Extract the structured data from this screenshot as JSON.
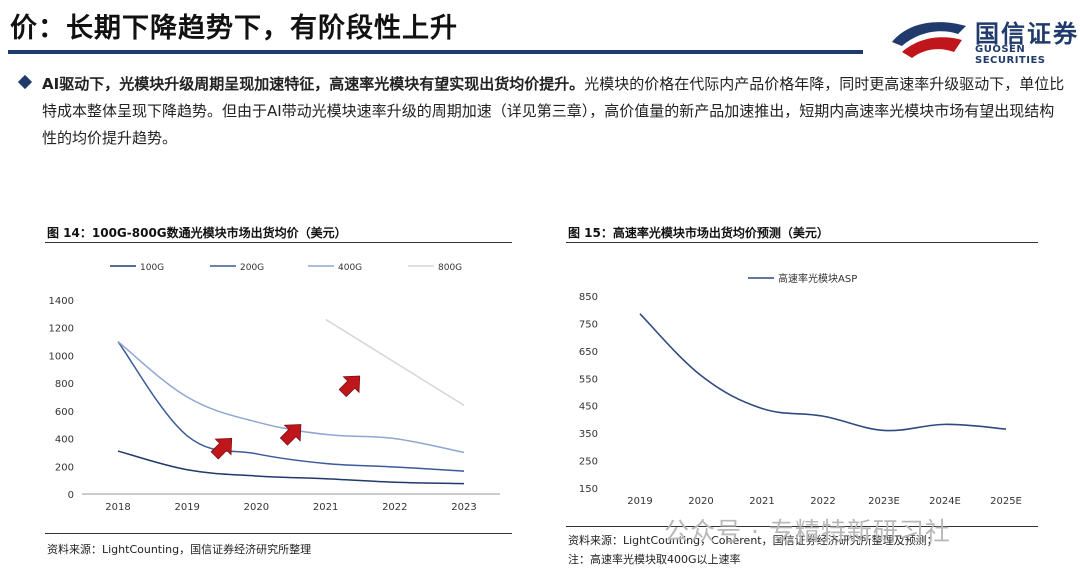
{
  "header": {
    "title": "价：长期下降趋势下，有阶段性上升",
    "logo_cn": "国信证券",
    "logo_en": "GUOSEN SECURITIES"
  },
  "bullet": {
    "bold": "AI驱动下，光模块升级周期呈现加速特征，高速率光模块有望实现出货均价提升。",
    "text": "光模块的价格在代际内产品价格年降，同时更高速率升级驱动下，单位比特成本整体呈现下降趋势。但由于AI带动光模块速率升级的周期加速（详见第三章），高价值量的新产品加速推出，短期内高速率光模块市场有望出现结构性的均价提升趋势。"
  },
  "figure14": {
    "title": "图 14：100G-800G数通光模块市场出货均价（美元）",
    "source": "资料来源：LightCounting，国信证券经济研究所整理"
  },
  "figure15": {
    "title": "图 15：高速率光模块市场出货均价预测（美元）",
    "source": "资料来源：LightCounting，Coherent，国信证券经济研究所整理及预测；",
    "note": "注：高速率光模块取400G以上速率"
  },
  "watermark": "公众号 · 专精特新研习社",
  "colors": {
    "brand": "#1f3a6b",
    "s100G": "#1f3a6b",
    "s200G": "#3a5a9a",
    "s400G": "#8fa6d3",
    "s800G": "#d6d6d6",
    "asp": "#2e4a80",
    "arrow": "#c0161b",
    "logo_red": "#c0161b"
  },
  "chart_data": [
    {
      "type": "line",
      "x": [
        2018,
        2019,
        2020,
        2021,
        2022,
        2023
      ],
      "series": [
        {
          "name": "100G",
          "values": [
            310,
            175,
            130,
            110,
            85,
            75
          ]
        },
        {
          "name": "200G",
          "values": [
            1100,
            420,
            290,
            220,
            195,
            165
          ]
        },
        {
          "name": "400G",
          "values": [
            1100,
            700,
            520,
            430,
            400,
            300
          ]
        },
        {
          "name": "800G",
          "values": [
            null,
            null,
            null,
            1260,
            950,
            640
          ]
        }
      ],
      "ylim": [
        0,
        1400
      ],
      "yticks": [
        "0",
        "200",
        "400",
        "600",
        "800",
        "1000",
        "1200",
        "1400"
      ],
      "xticks": [
        "2018",
        "2019",
        "2020",
        "2021",
        "2022",
        "2023"
      ],
      "legend": "top",
      "grid": false
    },
    {
      "type": "line",
      "categories": [
        "2019",
        "2020",
        "2021",
        "2022",
        "2023E",
        "2024E",
        "2025E"
      ],
      "series": [
        {
          "name": "高速率光模块ASP",
          "values": [
            785,
            560,
            440,
            412,
            360,
            382,
            365
          ]
        }
      ],
      "ylim": [
        150,
        850
      ],
      "yticks": [
        "150",
        "250",
        "350",
        "450",
        "550",
        "650",
        "750",
        "850"
      ],
      "legend": "top-left",
      "grid": false
    }
  ]
}
